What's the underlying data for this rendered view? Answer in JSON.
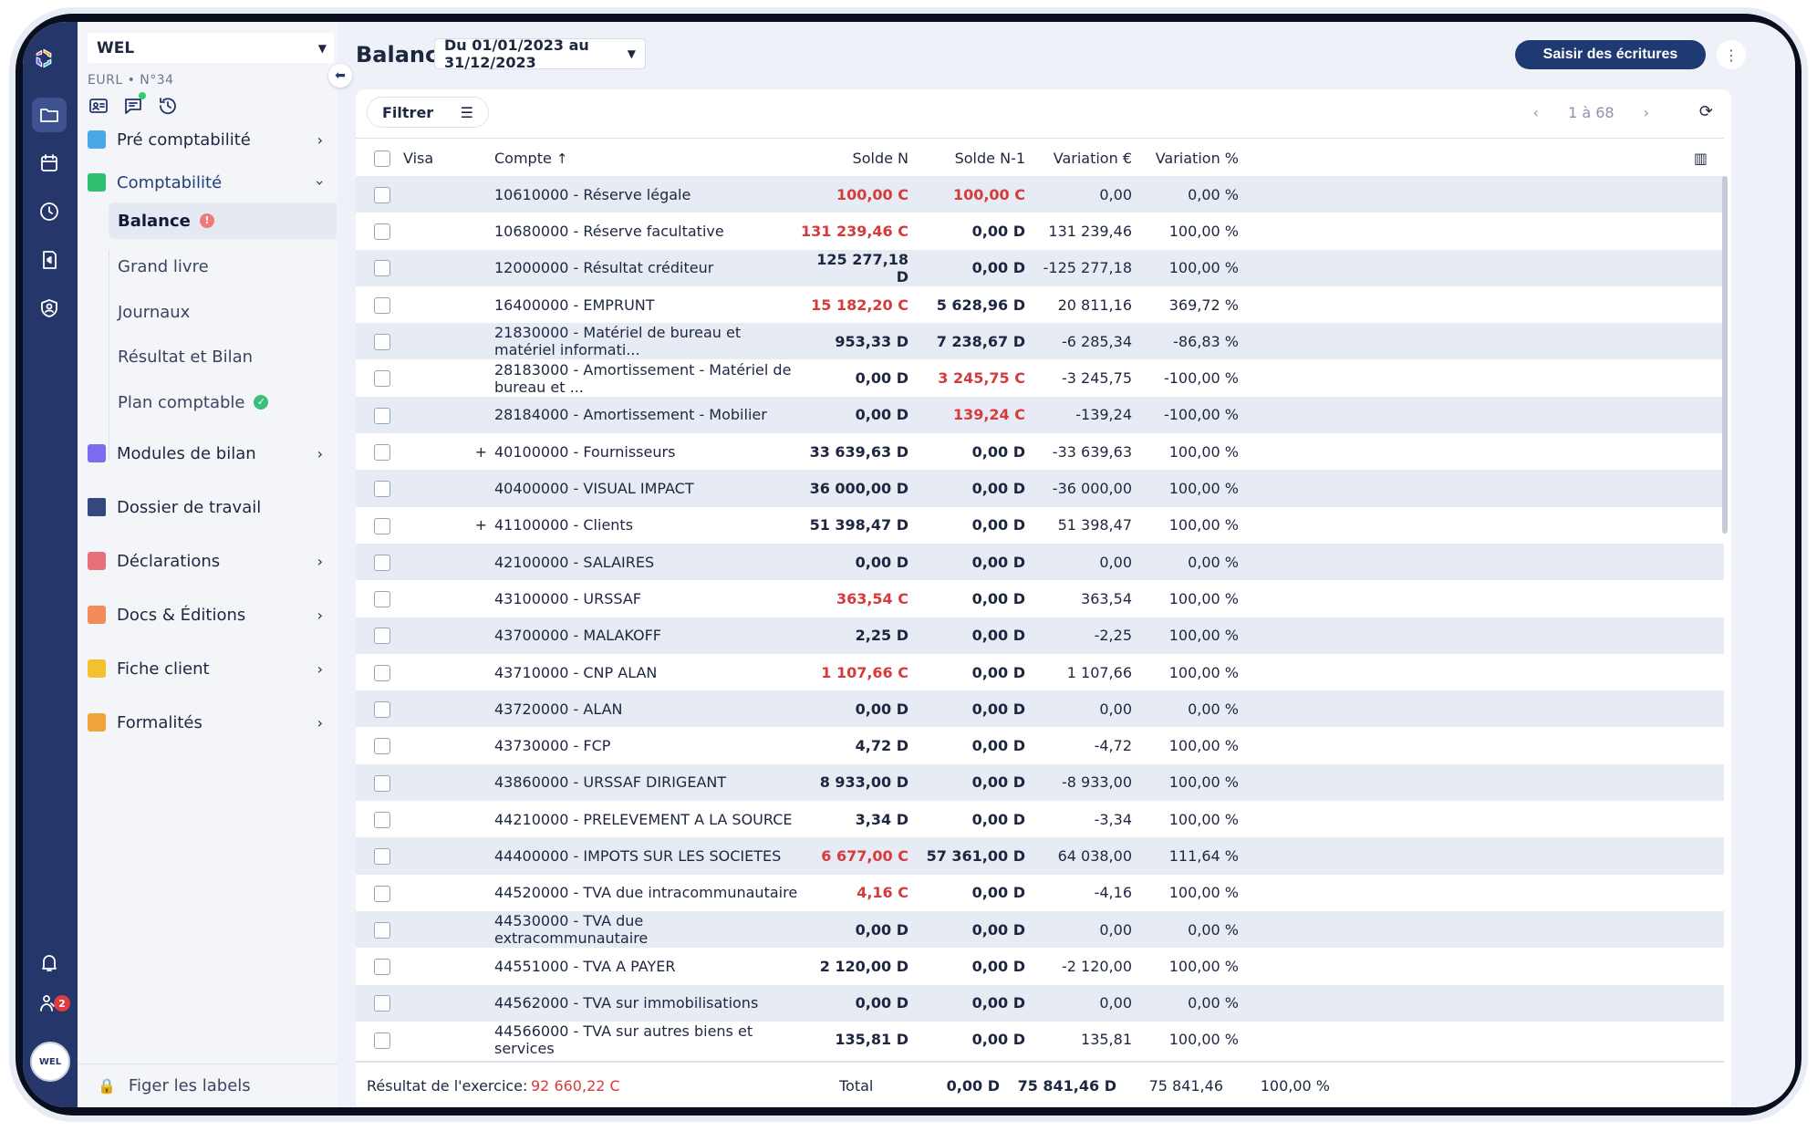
{
  "app": {
    "company": "WEL",
    "company_sub": "EURL • N°34",
    "avatar": "WEL",
    "notif_badge": "2",
    "figer_label": "Figer les labels"
  },
  "nav": {
    "pre_compta": "Pré comptabilité",
    "compta": "Comptabilité",
    "sub": [
      "Balance",
      "Grand livre",
      "Journaux",
      "Résultat et Bilan",
      "Plan comptable"
    ],
    "modules": "Modules de bilan",
    "dossier": "Dossier de travail",
    "declarations": "Déclarations",
    "docs": "Docs & Éditions",
    "fiche": "Fiche client",
    "formalites": "Formalités"
  },
  "header": {
    "title": "Balance",
    "period": "Du 01/01/2023 au 31/12/2023",
    "saisir": "Saisir des écritures"
  },
  "toolbar": {
    "filter": "Filtrer",
    "pager": "1 à 68"
  },
  "table": {
    "headers": [
      "Visa",
      "Compte",
      "Solde N",
      "Solde N-1",
      "Variation €",
      "Variation %"
    ],
    "rows": [
      {
        "exp": "",
        "compte": "10610000 - Réserve légale",
        "n": "100,00 C",
        "n_red": true,
        "n1": "100,00 C",
        "n1_red": true,
        "var": "0,00",
        "pct": "0,00 %"
      },
      {
        "exp": "",
        "compte": "10680000 - Réserve facultative",
        "n": "131 239,46 C",
        "n_red": true,
        "n1": "0,00 D",
        "n1_red": false,
        "var": "131 239,46",
        "pct": "100,00 %"
      },
      {
        "exp": "",
        "compte": "12000000 - Résultat créditeur",
        "n": "125 277,18 D",
        "n_red": false,
        "n1": "0,00 D",
        "n1_red": false,
        "var": "-125 277,18",
        "pct": "100,00 %"
      },
      {
        "exp": "",
        "compte": "16400000 - EMPRUNT",
        "n": "15 182,20 C",
        "n_red": true,
        "n1": "5 628,96 D",
        "n1_red": false,
        "var": "20 811,16",
        "pct": "369,72 %"
      },
      {
        "exp": "",
        "compte": "21830000 - Matériel de bureau et matériel informati...",
        "n": "953,33 D",
        "n_red": false,
        "n1": "7 238,67 D",
        "n1_red": false,
        "var": "-6 285,34",
        "pct": "-86,83 %"
      },
      {
        "exp": "",
        "compte": "28183000 - Amortissement - Matériel de bureau et ...",
        "n": "0,00 D",
        "n_red": false,
        "n1": "3 245,75 C",
        "n1_red": true,
        "var": "-3 245,75",
        "pct": "-100,00 %"
      },
      {
        "exp": "",
        "compte": "28184000 - Amortissement - Mobilier",
        "n": "0,00 D",
        "n_red": false,
        "n1": "139,24 C",
        "n1_red": true,
        "var": "-139,24",
        "pct": "-100,00 %"
      },
      {
        "exp": "+",
        "compte": "40100000 - Fournisseurs",
        "n": "33 639,63 D",
        "n_red": false,
        "n1": "0,00 D",
        "n1_red": false,
        "var": "-33 639,63",
        "pct": "100,00 %"
      },
      {
        "exp": "",
        "compte": "40400000 - VISUAL IMPACT",
        "n": "36 000,00 D",
        "n_red": false,
        "n1": "0,00 D",
        "n1_red": false,
        "var": "-36 000,00",
        "pct": "100,00 %"
      },
      {
        "exp": "+",
        "compte": "41100000 - Clients",
        "n": "51 398,47 D",
        "n_red": false,
        "n1": "0,00 D",
        "n1_red": false,
        "var": "51 398,47",
        "pct": "100,00 %"
      },
      {
        "exp": "",
        "compte": "42100000 - SALAIRES",
        "n": "0,00 D",
        "n_red": false,
        "n1": "0,00 D",
        "n1_red": false,
        "var": "0,00",
        "pct": "0,00 %"
      },
      {
        "exp": "",
        "compte": "43100000 - URSSAF",
        "n": "363,54 C",
        "n_red": true,
        "n1": "0,00 D",
        "n1_red": false,
        "var": "363,54",
        "pct": "100,00 %"
      },
      {
        "exp": "",
        "compte": "43700000 - MALAKOFF",
        "n": "2,25 D",
        "n_red": false,
        "n1": "0,00 D",
        "n1_red": false,
        "var": "-2,25",
        "pct": "100,00 %"
      },
      {
        "exp": "",
        "compte": "43710000 - CNP ALAN",
        "n": "1 107,66 C",
        "n_red": true,
        "n1": "0,00 D",
        "n1_red": false,
        "var": "1 107,66",
        "pct": "100,00 %"
      },
      {
        "exp": "",
        "compte": "43720000 - ALAN",
        "n": "0,00 D",
        "n_red": false,
        "n1": "0,00 D",
        "n1_red": false,
        "var": "0,00",
        "pct": "0,00 %"
      },
      {
        "exp": "",
        "compte": "43730000 - FCP",
        "n": "4,72 D",
        "n_red": false,
        "n1": "0,00 D",
        "n1_red": false,
        "var": "-4,72",
        "pct": "100,00 %"
      },
      {
        "exp": "",
        "compte": "43860000 - URSSAF DIRIGEANT",
        "n": "8 933,00 D",
        "n_red": false,
        "n1": "0,00 D",
        "n1_red": false,
        "var": "-8 933,00",
        "pct": "100,00 %"
      },
      {
        "exp": "",
        "compte": "44210000 - PRELEVEMENT A LA SOURCE",
        "n": "3,34 D",
        "n_red": false,
        "n1": "0,00 D",
        "n1_red": false,
        "var": "-3,34",
        "pct": "100,00 %"
      },
      {
        "exp": "",
        "compte": "44400000 - IMPOTS SUR LES SOCIETES",
        "n": "6 677,00 C",
        "n_red": true,
        "n1": "57 361,00 D",
        "n1_red": false,
        "var": "64 038,00",
        "pct": "111,64 %"
      },
      {
        "exp": "",
        "compte": "44520000 - TVA due intracommunautaire",
        "n": "4,16 C",
        "n_red": true,
        "n1": "0,00 D",
        "n1_red": false,
        "var": "-4,16",
        "pct": "100,00 %"
      },
      {
        "exp": "",
        "compte": "44530000 - TVA due extracommunautaire",
        "n": "0,00 D",
        "n_red": false,
        "n1": "0,00 D",
        "n1_red": false,
        "var": "0,00",
        "pct": "0,00 %"
      },
      {
        "exp": "",
        "compte": "44551000 - TVA A PAYER",
        "n": "2 120,00 D",
        "n_red": false,
        "n1": "0,00 D",
        "n1_red": false,
        "var": "-2 120,00",
        "pct": "100,00 %"
      },
      {
        "exp": "",
        "compte": "44562000 - TVA sur immobilisations",
        "n": "0,00 D",
        "n_red": false,
        "n1": "0,00 D",
        "n1_red": false,
        "var": "0,00",
        "pct": "0,00 %"
      },
      {
        "exp": "",
        "compte": "44566000 - TVA sur autres biens et services",
        "n": "135,81 D",
        "n_red": false,
        "n1": "0,00 D",
        "n1_red": false,
        "var": "135,81",
        "pct": "100,00 %"
      }
    ]
  },
  "footer": {
    "result_label": "Résultat de l'exercice:",
    "result_value": "92 660,22 C",
    "total_label": "Total",
    "n": "0,00 D",
    "n1": "75 841,46 D",
    "var": "75 841,46",
    "pct": "100,00 %"
  },
  "colors": {
    "rail": "#25366a",
    "accent": "#1f3a73",
    "credit_red": "#d63a3a",
    "row_alt": "#e6ebf4"
  }
}
